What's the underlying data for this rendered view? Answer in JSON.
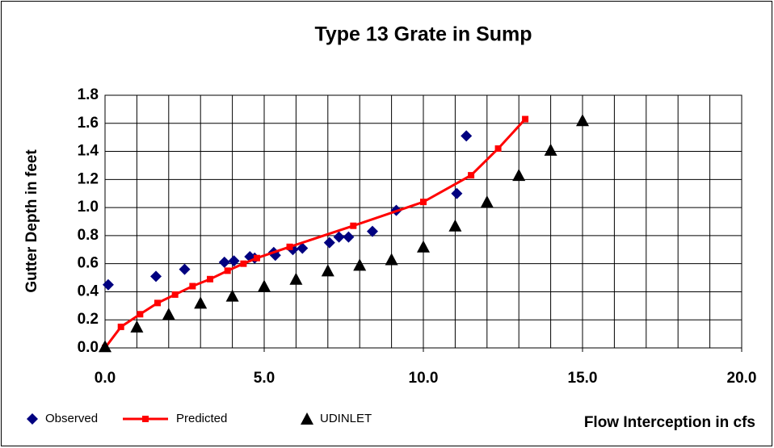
{
  "chart_data": {
    "type": "scatter",
    "title": "Type 13 Grate in Sump",
    "xlabel": "Flow Interception in cfs",
    "ylabel": "Gutter Depth in feet",
    "xlim": [
      0,
      20
    ],
    "ylim": [
      0,
      1.8
    ],
    "xticks": [
      {
        "value": 0,
        "label": "0.0"
      },
      {
        "value": 5,
        "label": "5.0"
      },
      {
        "value": 10,
        "label": "10.0"
      },
      {
        "value": 15,
        "label": "15.0"
      },
      {
        "value": 20,
        "label": "20.0"
      }
    ],
    "xgrid": [
      0,
      1,
      2,
      3,
      4,
      5,
      6,
      7,
      8,
      9,
      10,
      11,
      12,
      13,
      14,
      15,
      16,
      17,
      18,
      19,
      20
    ],
    "yticks": [
      {
        "value": 0,
        "label": "0.0"
      },
      {
        "value": 0.2,
        "label": "0.2"
      },
      {
        "value": 0.4,
        "label": "0.4"
      },
      {
        "value": 0.6,
        "label": "0.6"
      },
      {
        "value": 0.8,
        "label": "0.8"
      },
      {
        "value": 1.0,
        "label": "1.0"
      },
      {
        "value": 1.2,
        "label": "1.2"
      },
      {
        "value": 1.4,
        "label": "1.4"
      },
      {
        "value": 1.6,
        "label": "1.6"
      },
      {
        "value": 1.8,
        "label": "1.8"
      }
    ],
    "grid": true,
    "series": [
      {
        "name": "Observed",
        "color": "#000080",
        "marker": "diamond",
        "line": false,
        "x": [
          0.1,
          1.6,
          2.5,
          3.75,
          4.05,
          4.55,
          4.7,
          5.3,
          5.35,
          5.9,
          6.2,
          7.05,
          7.35,
          7.65,
          8.4,
          9.15,
          11.05,
          11.35
        ],
        "values": [
          0.45,
          0.51,
          0.56,
          0.61,
          0.62,
          0.65,
          0.64,
          0.68,
          0.66,
          0.7,
          0.71,
          0.75,
          0.79,
          0.79,
          0.83,
          0.98,
          1.1,
          1.51
        ]
      },
      {
        "name": "Predicted",
        "color": "#ff0000",
        "marker": "square",
        "line": true,
        "x": [
          0,
          0.5,
          1.1,
          1.65,
          2.2,
          2.75,
          3.3,
          3.85,
          4.35,
          4.77,
          5.8,
          7.8,
          10,
          11.5,
          12.35,
          13.2
        ],
        "values": [
          0,
          0.15,
          0.24,
          0.32,
          0.38,
          0.44,
          0.49,
          0.55,
          0.6,
          0.64,
          0.72,
          0.87,
          1.04,
          1.23,
          1.42,
          1.63
        ]
      },
      {
        "name": "UDINLET",
        "color": "#000000",
        "marker": "triangle",
        "line": false,
        "x": [
          0,
          1,
          2,
          3,
          4,
          5,
          6,
          7,
          8,
          9,
          10,
          11,
          12,
          13,
          14,
          15
        ],
        "values": [
          0.01,
          0.15,
          0.24,
          0.32,
          0.37,
          0.44,
          0.49,
          0.55,
          0.59,
          0.63,
          0.72,
          0.87,
          1.04,
          1.23,
          1.41,
          1.62
        ]
      }
    ]
  }
}
